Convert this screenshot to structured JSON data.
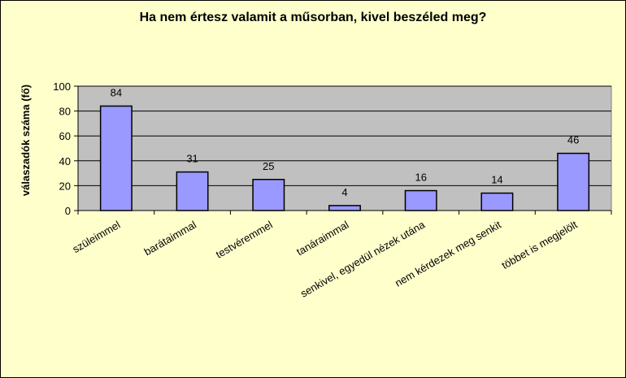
{
  "chart_data": {
    "type": "bar",
    "title": "Ha nem értesz valamit a műsorban, kivel beszéled meg?",
    "xlabel": "",
    "ylabel": "válaszadók száma (fő)",
    "categories": [
      "szüleimmel",
      "barátaimmal",
      "testvéremmel",
      "tanáraimmal",
      "senkivel, egyedül nézek utána",
      "nem kérdezek meg senkit",
      "többet is megjelölt"
    ],
    "values": [
      84,
      31,
      25,
      4,
      16,
      14,
      46
    ],
    "ylim": [
      0,
      100
    ],
    "yticks": [
      0,
      20,
      40,
      60,
      80,
      100
    ],
    "grid": true,
    "colors": {
      "background": "#FFFFCC",
      "plot_area": "#C0C0C0",
      "bar_fill": "#9999FF",
      "bar_stroke": "#000000"
    }
  }
}
